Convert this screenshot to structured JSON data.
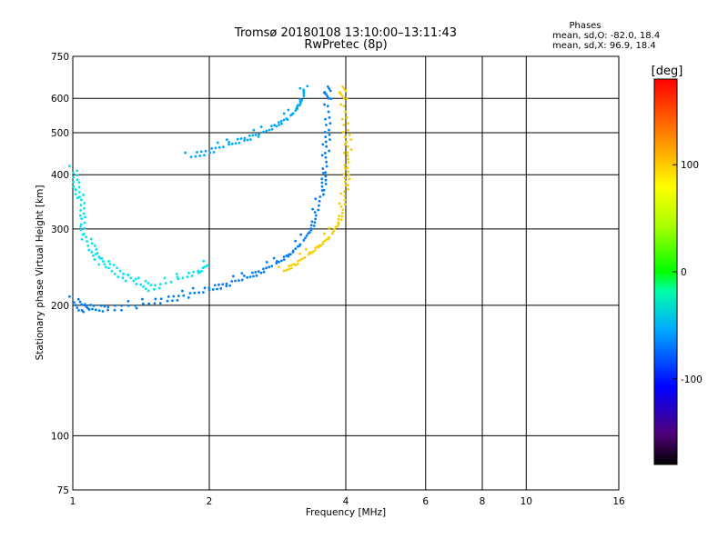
{
  "chart_data": {
    "type": "scatter",
    "title": "Tromsø 20180108 13:10:00–13:11:43",
    "subtitle": "RwPretec (8p)",
    "xlabel": "Frequency [MHz]",
    "ylabel": "Stationary phase Virtual Height [km]",
    "x_scale": "log",
    "y_scale": "log",
    "xlim": [
      1,
      16
    ],
    "ylim": [
      75,
      750
    ],
    "x_ticks": [
      1,
      2,
      4,
      6,
      8,
      10,
      16
    ],
    "y_ticks": [
      75,
      100,
      200,
      300,
      400,
      500,
      600,
      750
    ],
    "x_tick_labels": [
      "1",
      "2",
      "4",
      "6",
      "8",
      "10",
      "16"
    ],
    "y_tick_labels": [
      "75",
      "100",
      "200",
      "300",
      "400",
      "500",
      "600",
      "750"
    ],
    "grid": true,
    "stats": {
      "heading": "Phases",
      "line_o": "mean, sd,O: -82.0, 18.4",
      "line_x": "mean, sd,X:  96.9, 18.4"
    },
    "colorbar": {
      "label": "[deg]",
      "ticks": [
        "100",
        "0",
        "-100"
      ],
      "tick_values": [
        100,
        0,
        -100
      ],
      "range": [
        -180,
        180
      ]
    },
    "traces": [
      {
        "name": "",
        "phase_deg": -110,
        "points": [
          [
            1.0,
            205
          ],
          [
            1.05,
            198
          ],
          [
            1.1,
            196
          ],
          [
            1.2,
            197
          ],
          [
            1.4,
            201
          ],
          [
            1.6,
            206
          ],
          [
            1.8,
            212
          ],
          [
            2.0,
            218
          ],
          [
            2.2,
            225
          ],
          [
            2.4,
            232
          ],
          [
            2.6,
            240
          ],
          [
            2.8,
            250
          ],
          [
            3.0,
            262
          ],
          [
            3.2,
            280
          ],
          [
            3.35,
            300
          ],
          [
            3.45,
            330
          ],
          [
            3.55,
            370
          ],
          [
            3.6,
            410
          ],
          [
            3.62,
            460
          ],
          [
            3.65,
            520
          ],
          [
            3.65,
            600
          ],
          [
            3.62,
            640
          ]
        ]
      },
      {
        "name": "",
        "phase_deg": -95,
        "points": [
          [
            1.8,
            440
          ],
          [
            2.0,
            455
          ],
          [
            2.2,
            470
          ],
          [
            2.4,
            485
          ],
          [
            2.6,
            500
          ],
          [
            2.8,
            520
          ],
          [
            3.0,
            545
          ],
          [
            3.1,
            565
          ],
          [
            3.2,
            600
          ],
          [
            3.25,
            640
          ]
        ]
      },
      {
        "name": "",
        "phase_deg": 110,
        "points": [
          [
            2.9,
            240
          ],
          [
            3.1,
            250
          ],
          [
            3.3,
            262
          ],
          [
            3.5,
            275
          ],
          [
            3.7,
            290
          ],
          [
            3.85,
            310
          ],
          [
            3.95,
            340
          ],
          [
            4.0,
            380
          ],
          [
            4.02,
            420
          ],
          [
            4.05,
            460
          ],
          [
            4.0,
            520
          ],
          [
            3.95,
            600
          ],
          [
            3.9,
            640
          ]
        ]
      },
      {
        "name": "",
        "phase_deg": -75,
        "points": [
          [
            1.0,
            410
          ],
          [
            1.02,
            380
          ],
          [
            1.04,
            350
          ],
          [
            1.05,
            320
          ],
          [
            1.06,
            290
          ],
          [
            1.1,
            270
          ],
          [
            1.15,
            255
          ],
          [
            1.2,
            245
          ],
          [
            1.3,
            235
          ],
          [
            1.4,
            225
          ],
          [
            1.5,
            220
          ],
          [
            1.7,
            230
          ],
          [
            1.9,
            240
          ],
          [
            2.0,
            250
          ]
        ]
      }
    ]
  }
}
